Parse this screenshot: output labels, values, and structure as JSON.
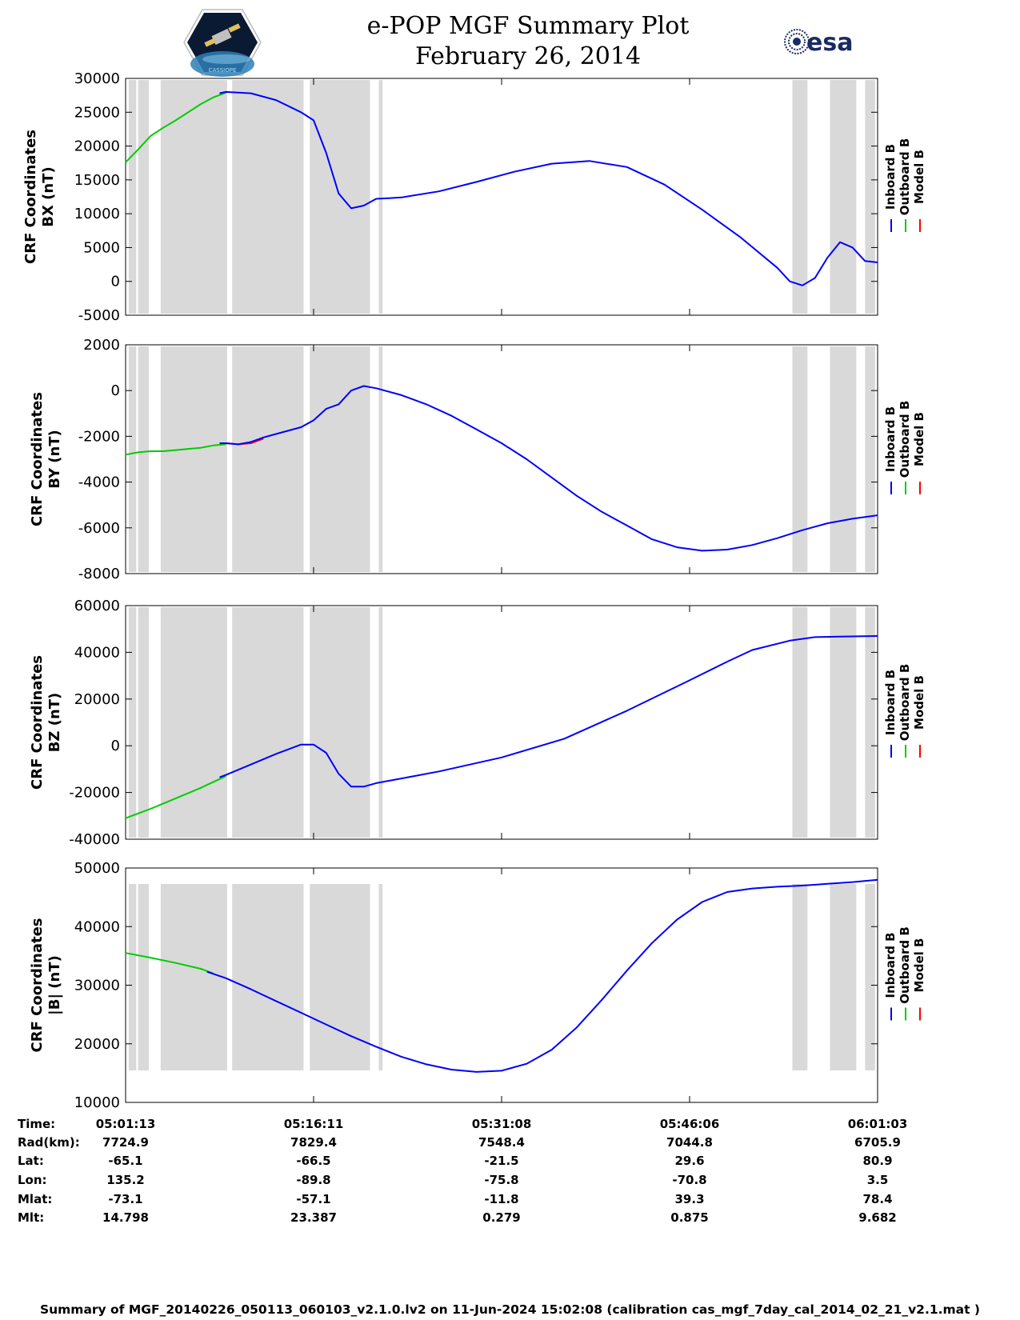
{
  "header": {
    "title_line1": "e-POP MGF Summary Plot",
    "title_line2": "February 26, 2014",
    "esa_logo_text": "esa",
    "epop_logo_text": "CASSIOPE"
  },
  "colors": {
    "inboard": "#0000ff",
    "outboard": "#00cc00",
    "model": "#ff0000",
    "shade": "#d9d9d9"
  },
  "legend": {
    "inboard": "Inboard B",
    "outboard": "Outboard B",
    "model": "Model B"
  },
  "chart_data": [
    {
      "type": "line",
      "ylabel": [
        "CRF Coordinates",
        "BX (nT)"
      ],
      "ylim": [
        -5000,
        30000
      ],
      "yticks": [
        -5000,
        0,
        5000,
        10000,
        15000,
        20000,
        25000,
        30000
      ],
      "xlim": [
        0,
        60
      ],
      "series": [
        {
          "name": "Outboard B",
          "x": [
            0,
            1,
            2,
            3,
            4,
            5,
            6,
            7,
            8
          ],
          "values": [
            17600,
            19500,
            21500,
            22700,
            23800,
            25000,
            26200,
            27200,
            27900
          ]
        },
        {
          "name": "Inboard B",
          "x": [
            7.5,
            8,
            10,
            12,
            14,
            15,
            16,
            17,
            18,
            19,
            20,
            21,
            22,
            25,
            28,
            31,
            34,
            37,
            40,
            43,
            46,
            49,
            52,
            53,
            54,
            55,
            56,
            57,
            58,
            59,
            60
          ],
          "values": [
            27800,
            28000,
            27800,
            26800,
            25000,
            23800,
            19000,
            13000,
            10800,
            11200,
            12200,
            12300,
            12400,
            13300,
            14700,
            16200,
            17400,
            17800,
            16900,
            14300,
            10600,
            6600,
            2000,
            0,
            -600,
            500,
            3500,
            5800,
            5000,
            3000,
            2800
          ]
        }
      ]
    },
    {
      "type": "line",
      "ylabel": [
        "CRF Coordinates",
        "BY (nT)"
      ],
      "ylim": [
        -8000,
        2000
      ],
      "yticks": [
        -8000,
        -6000,
        -4000,
        -2000,
        0,
        2000
      ],
      "xlim": [
        0,
        60
      ],
      "series": [
        {
          "name": "Outboard B",
          "x": [
            0,
            1,
            2,
            3,
            4,
            5,
            6,
            7,
            8
          ],
          "values": [
            -2800,
            -2700,
            -2650,
            -2650,
            -2600,
            -2550,
            -2500,
            -2400,
            -2350
          ]
        },
        {
          "name": "Model B",
          "x": [
            8,
            9,
            10,
            11
          ],
          "values": [
            -2300,
            -2350,
            -2300,
            -2100
          ]
        },
        {
          "name": "Inboard B",
          "x": [
            7.5,
            8,
            9,
            10,
            11,
            12,
            14,
            15,
            16,
            17,
            18,
            19,
            20,
            22,
            24,
            26,
            28,
            30,
            32,
            34,
            36,
            38,
            40,
            42,
            44,
            46,
            48,
            50,
            52,
            54,
            56,
            58,
            60
          ],
          "values": [
            -2300,
            -2300,
            -2350,
            -2250,
            -2050,
            -1900,
            -1600,
            -1300,
            -800,
            -600,
            0,
            200,
            100,
            -200,
            -600,
            -1100,
            -1700,
            -2300,
            -3000,
            -3800,
            -4600,
            -5300,
            -5900,
            -6500,
            -6850,
            -7000,
            -6950,
            -6750,
            -6450,
            -6100,
            -5800,
            -5600,
            -5450
          ]
        }
      ]
    },
    {
      "type": "line",
      "ylabel": [
        "CRF Coordinates",
        "BZ (nT)"
      ],
      "ylim": [
        -40000,
        60000
      ],
      "yticks": [
        -40000,
        -20000,
        0,
        20000,
        40000,
        60000
      ],
      "xlim": [
        0,
        60
      ],
      "series": [
        {
          "name": "Outboard B",
          "x": [
            0,
            2,
            4,
            6,
            8
          ],
          "values": [
            -31000,
            -27000,
            -22500,
            -18000,
            -13000
          ]
        },
        {
          "name": "Inboard B",
          "x": [
            7.5,
            8,
            10,
            12,
            14,
            15,
            16,
            17,
            18,
            19,
            20,
            22,
            25,
            30,
            35,
            40,
            45,
            48,
            50,
            53,
            55,
            57,
            60
          ],
          "values": [
            -13500,
            -12500,
            -8000,
            -3500,
            500,
            500,
            -3000,
            -12000,
            -17500,
            -17500,
            -16000,
            -14000,
            -11000,
            -5000,
            3000,
            15000,
            28000,
            36000,
            41000,
            45000,
            46500,
            46700,
            47000
          ]
        }
      ]
    },
    {
      "type": "line",
      "ylabel": [
        "CRF Coordinates",
        "|B| (nT)"
      ],
      "ylim": [
        10000,
        50000
      ],
      "yticks": [
        10000,
        20000,
        30000,
        40000,
        50000
      ],
      "xlim": [
        0,
        60
      ],
      "series": [
        {
          "name": "Outboard B",
          "x": [
            0,
            2,
            4,
            6,
            7
          ],
          "values": [
            35500,
            34700,
            33800,
            32800,
            32000
          ]
        },
        {
          "name": "Inboard B",
          "x": [
            6.5,
            8,
            10,
            12,
            14,
            16,
            18,
            20,
            22,
            24,
            26,
            28,
            30,
            32,
            34,
            36,
            38,
            40,
            42,
            44,
            46,
            48,
            50,
            52,
            54,
            56,
            58,
            60
          ],
          "values": [
            32300,
            31200,
            29300,
            27300,
            25300,
            23300,
            21300,
            19500,
            17800,
            16500,
            15600,
            15200,
            15400,
            16600,
            19000,
            22800,
            27500,
            32500,
            37200,
            41200,
            44200,
            45900,
            46500,
            46800,
            47000,
            47300,
            47600,
            48000
          ]
        }
      ]
    }
  ],
  "shaded_intervals": [
    [
      0.25,
      0.85
    ],
    [
      1.0,
      1.85
    ],
    [
      2.8,
      8.1
    ],
    [
      8.5,
      14.2
    ],
    [
      14.7,
      19.5
    ],
    [
      20.2,
      20.5
    ],
    [
      53.2,
      54.4
    ],
    [
      56.2,
      58.3
    ],
    [
      59.0,
      59.8
    ]
  ],
  "xticks": [
    0,
    15,
    30,
    45,
    60
  ],
  "info_table": {
    "labels": [
      "Time:",
      "Rad(km):",
      "Lat:",
      "Lon:",
      "Mlat:",
      "Mlt:"
    ],
    "columns": [
      [
        "05:01:13",
        "7724.9",
        "-65.1",
        "135.2",
        "-73.1",
        "14.798"
      ],
      [
        "05:16:11",
        "7829.4",
        "-66.5",
        "-89.8",
        "-57.1",
        "23.387"
      ],
      [
        "05:31:08",
        "7548.4",
        "-21.5",
        "-75.8",
        "-11.8",
        "0.279"
      ],
      [
        "05:46:06",
        "7044.8",
        "29.6",
        "-70.8",
        "39.3",
        "0.875"
      ],
      [
        "06:01:03",
        "6705.9",
        "80.9",
        "3.5",
        "78.4",
        "9.682"
      ]
    ]
  },
  "footer": "Summary of MGF_20140226_050113_060103_v2.1.0.lv2 on 11-Jun-2024 15:02:08 (calibration cas_mgf_7day_cal_2014_02_21_v2.1.mat )"
}
